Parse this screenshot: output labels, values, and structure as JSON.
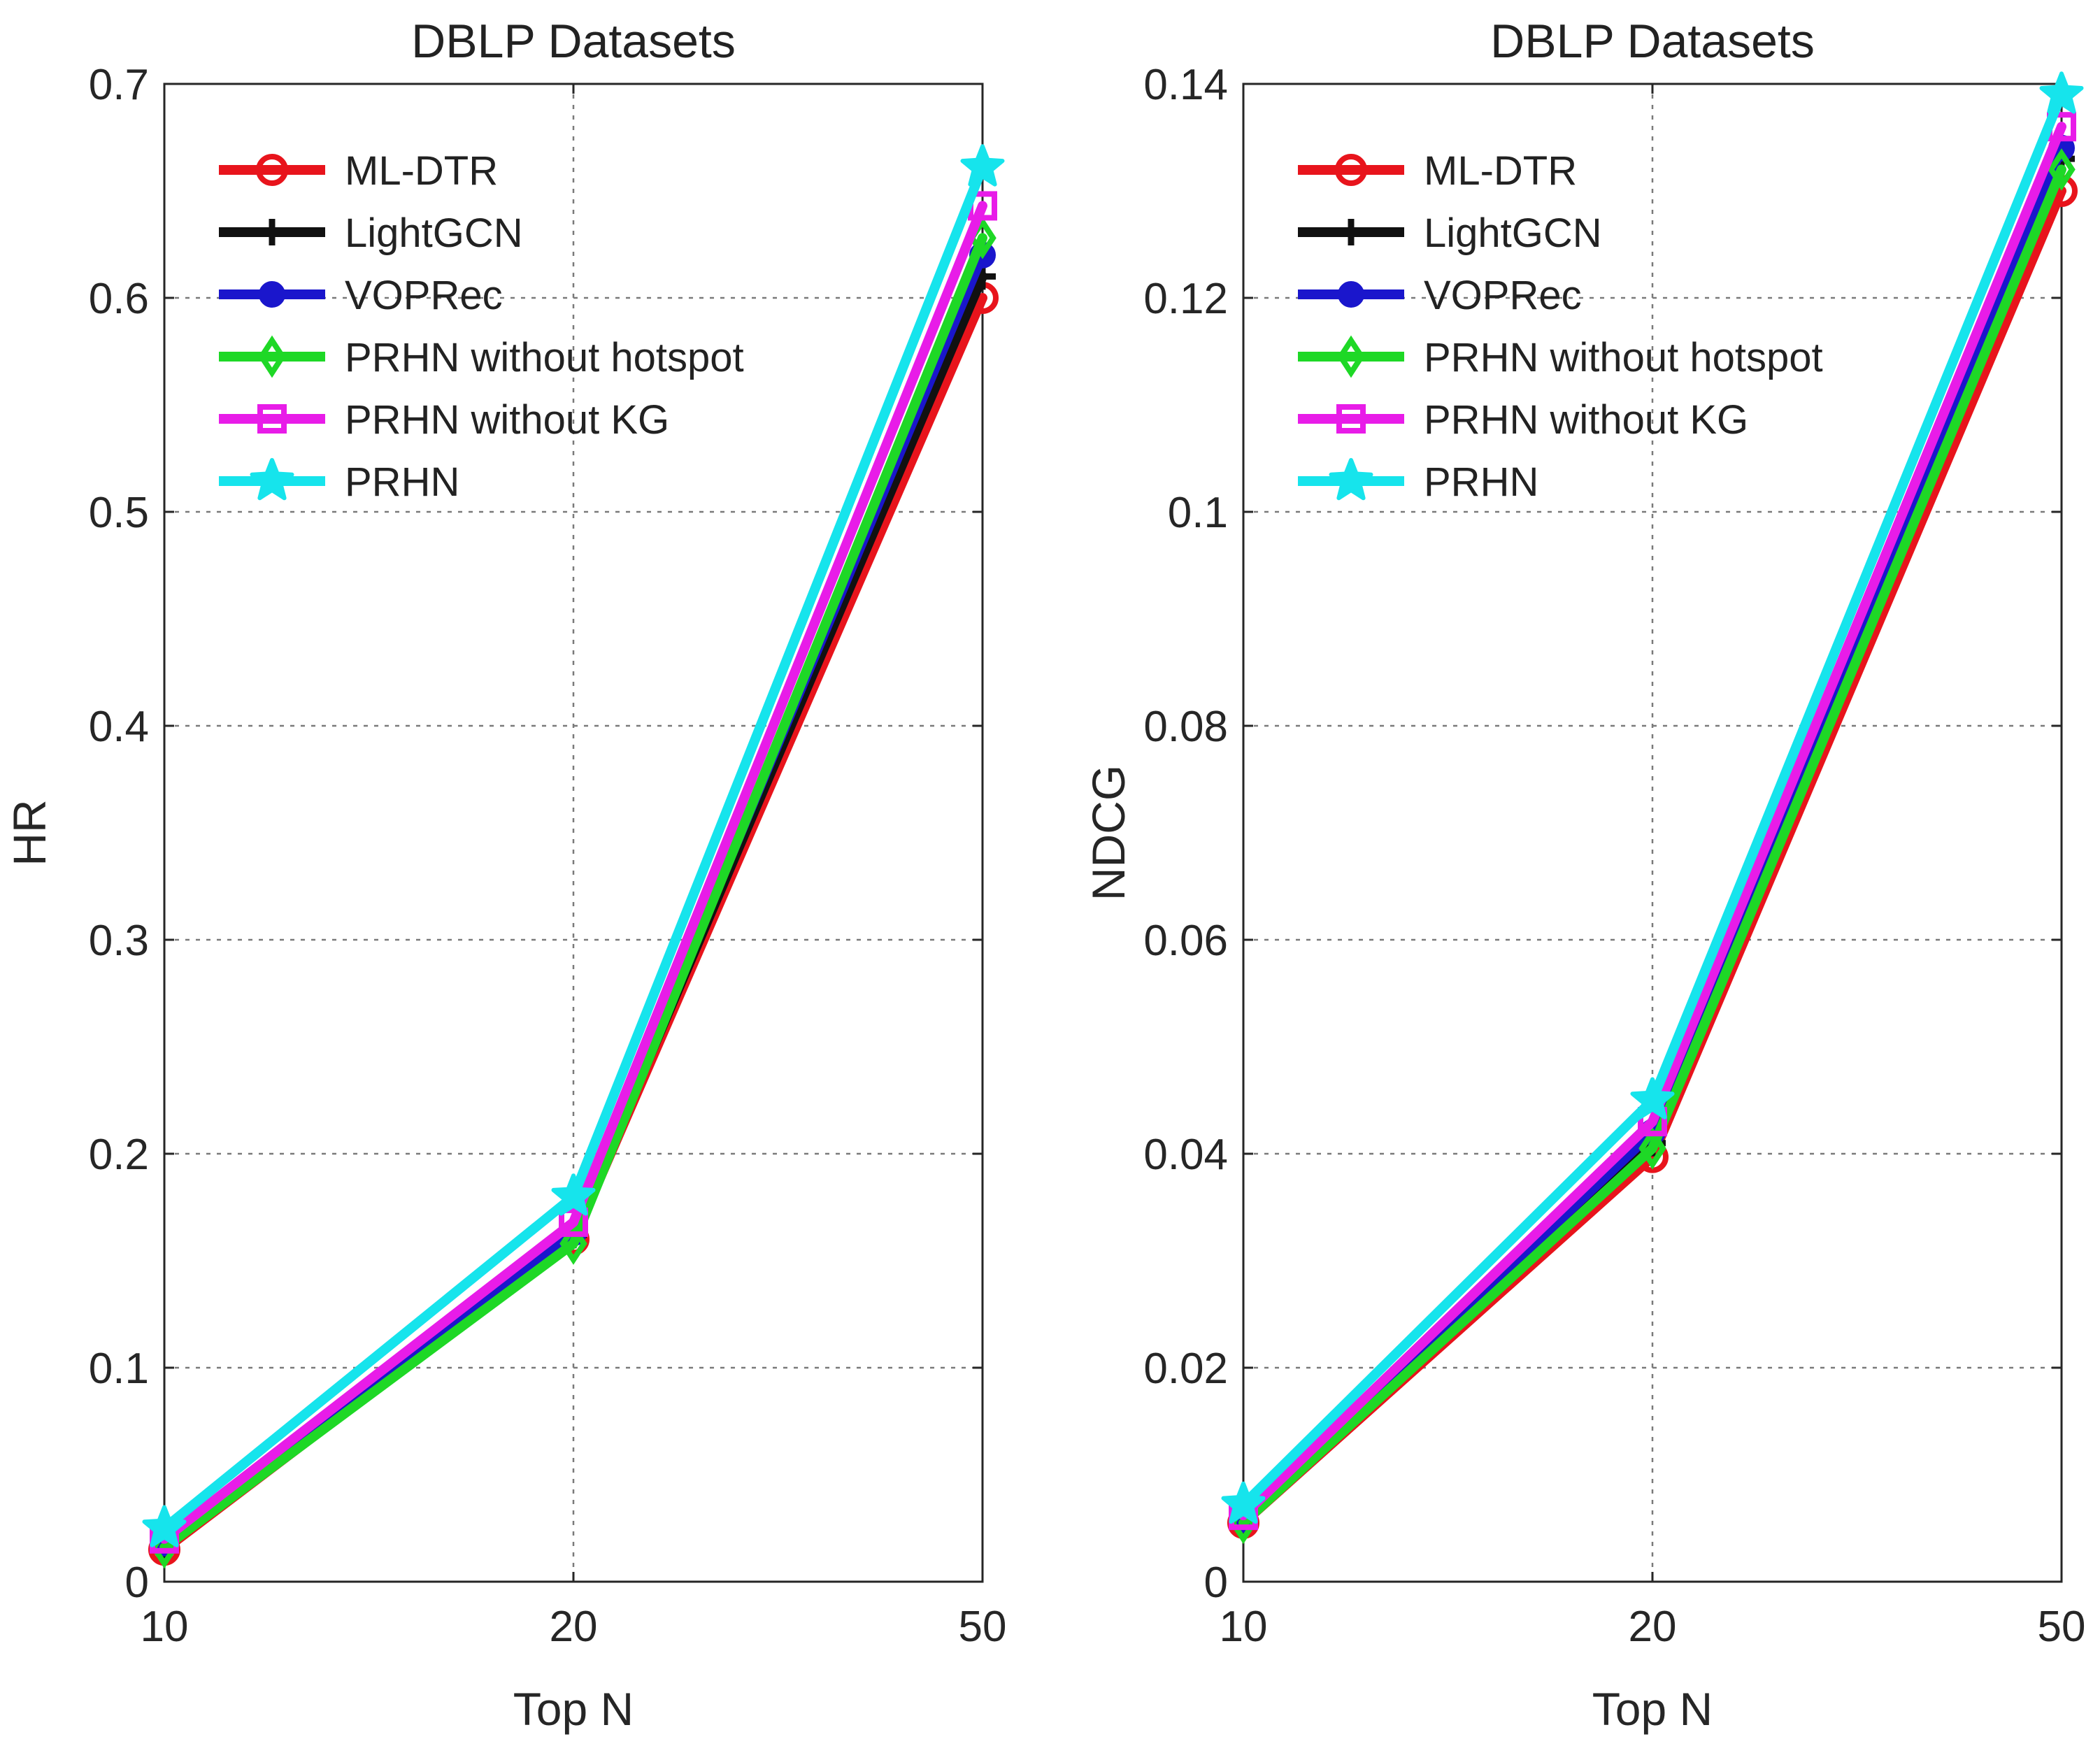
{
  "chart_data": [
    {
      "type": "line",
      "title": "DBLP Datasets",
      "xlabel": "Top N",
      "ylabel": "HR",
      "categories": [
        "10",
        "20",
        "50"
      ],
      "ylim": [
        0,
        0.7
      ],
      "yticks": [
        "0",
        "0.1",
        "0.2",
        "0.3",
        "0.4",
        "0.5",
        "0.6",
        "0.7"
      ],
      "grid": true,
      "legend_position": "top-left",
      "series": [
        {
          "name": "ML-DTR",
          "values": [
            0.015,
            0.16,
            0.6
          ]
        },
        {
          "name": "LightGCN",
          "values": [
            0.017,
            0.162,
            0.61
          ]
        },
        {
          "name": "VOPRec",
          "values": [
            0.018,
            0.163,
            0.62
          ]
        },
        {
          "name": "PRHN without hotspot",
          "values": [
            0.016,
            0.158,
            0.628
          ]
        },
        {
          "name": "PRHN without KG",
          "values": [
            0.02,
            0.168,
            0.643
          ]
        },
        {
          "name": "PRHN",
          "values": [
            0.025,
            0.18,
            0.661
          ]
        }
      ]
    },
    {
      "type": "line",
      "title": "DBLP Datasets",
      "xlabel": "Top N",
      "ylabel": "NDCG",
      "categories": [
        "10",
        "20",
        "50"
      ],
      "ylim": [
        0,
        0.14
      ],
      "yticks": [
        "0",
        "0.02",
        "0.04",
        "0.06",
        "0.08",
        "0.1",
        "0.12",
        "0.14"
      ],
      "grid": true,
      "legend_position": "top-left",
      "series": [
        {
          "name": "ML-DTR",
          "values": [
            0.0055,
            0.0397,
            0.13
          ]
        },
        {
          "name": "LightGCN",
          "values": [
            0.006,
            0.041,
            0.133
          ]
        },
        {
          "name": "VOPRec",
          "values": [
            0.0058,
            0.042,
            0.134
          ]
        },
        {
          "name": "PRHN without hotspot",
          "values": [
            0.0055,
            0.0405,
            0.132
          ]
        },
        {
          "name": "PRHN without KG",
          "values": [
            0.0062,
            0.043,
            0.136
          ]
        },
        {
          "name": "PRHN",
          "values": [
            0.0072,
            0.045,
            0.139
          ]
        }
      ]
    }
  ],
  "series_style": [
    {
      "name": "ML-DTR",
      "color": "#e8141c",
      "marker": "circle"
    },
    {
      "name": "LightGCN",
      "color": "#111111",
      "marker": "plus"
    },
    {
      "name": "VOPRec",
      "color": "#1a16cc",
      "marker": "dot"
    },
    {
      "name": "PRHN without hotspot",
      "color": "#1ed826",
      "marker": "diamond"
    },
    {
      "name": "PRHN without KG",
      "color": "#e81ce8",
      "marker": "square"
    },
    {
      "name": "PRHN",
      "color": "#16e4ec",
      "marker": "star"
    }
  ]
}
